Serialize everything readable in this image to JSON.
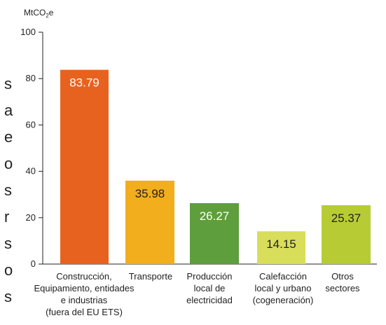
{
  "unit_label": {
    "main": "MtCO",
    "sub": "2",
    "suffix": "e"
  },
  "clipped_letters": [
    "s",
    "a",
    "e",
    "o",
    "s",
    "r",
    "s",
    "o",
    "s"
  ],
  "chart_data": {
    "type": "bar",
    "title": "",
    "xlabel": "",
    "ylabel": "MtCO2e",
    "ylim": [
      0,
      100
    ],
    "yticks": [
      0,
      20,
      40,
      60,
      80,
      100
    ],
    "grid": false,
    "categories": [
      [
        "Construcción,",
        "Equipamiento, entidades",
        "e industrias",
        "(fuera del EU ETS)"
      ],
      [
        "Transporte"
      ],
      [
        "Producción",
        "local de",
        "electricidad"
      ],
      [
        "Calefacción",
        "local y urbano",
        "(cogeneración)"
      ],
      [
        "Otros",
        "sectores"
      ]
    ],
    "values": [
      83.79,
      35.98,
      26.27,
      14.15,
      25.37
    ],
    "value_labels": [
      "83.79",
      "35.98",
      "26.27",
      "14.15",
      "25.37"
    ],
    "colors": [
      "#E8621F",
      "#F2AE1C",
      "#5E9E3C",
      "#D9DE5A",
      "#B7CC34"
    ],
    "label_colors": [
      "#ffffff",
      "#222222",
      "#ffffff",
      "#222222",
      "#222222"
    ]
  }
}
